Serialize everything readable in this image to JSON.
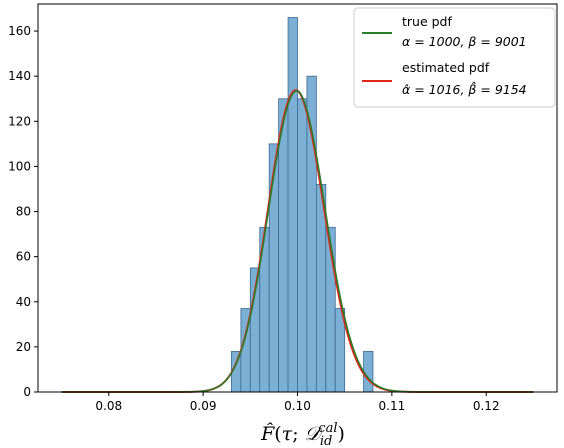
{
  "chart_data": {
    "type": "bar",
    "title": "",
    "xlabel": "F̂(τ; D_id^cal)",
    "ylabel": "",
    "xlim": [
      0.0725,
      0.1275
    ],
    "ylim": [
      0,
      172
    ],
    "grid": false,
    "legend_placement": "top-right",
    "x_ticks": [
      0.08,
      0.09,
      0.1,
      0.11,
      0.12
    ],
    "x_tick_labels": [
      "0.08",
      "0.09",
      "0.10",
      "0.11",
      "0.12"
    ],
    "y_ticks": [
      0,
      20,
      40,
      60,
      80,
      100,
      120,
      140,
      160
    ],
    "y_tick_labels": [
      "0",
      "20",
      "40",
      "60",
      "80",
      "100",
      "120",
      "140",
      "160"
    ],
    "histogram": {
      "bin_width": 0.001,
      "bin_starts": [
        0.093,
        0.094,
        0.095,
        0.096,
        0.097,
        0.098,
        0.099,
        0.1,
        0.101,
        0.102,
        0.103,
        0.104,
        0.105,
        0.106,
        0.107
      ],
      "counts": [
        18,
        37,
        55,
        73,
        110,
        130,
        166,
        130,
        140,
        92,
        73,
        37,
        0,
        0,
        18
      ],
      "color": "#7bafd4",
      "edge_color": "#3c6a94"
    },
    "series": [
      {
        "name": "true pdf",
        "params": "α = 1000, β = 9001",
        "alpha": 1000,
        "beta": 9001,
        "color": "#2a7d2a",
        "peak": 133.5
      },
      {
        "name": "estimated pdf",
        "params": "α̂ = 1016, β̂ = 9154",
        "alpha": 1016,
        "beta": 9154,
        "color": "#e0261c",
        "peak": 133.8
      }
    ],
    "curve_x_range": [
      0.075,
      0.125
    ]
  }
}
